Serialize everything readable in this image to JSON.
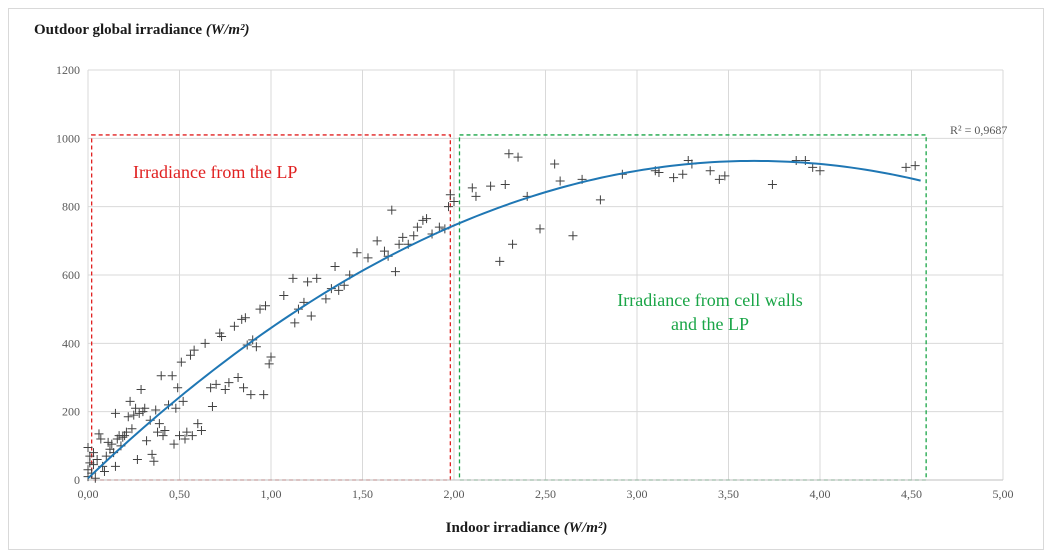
{
  "chart_data": {
    "type": "scatter",
    "title": "",
    "xlabel": "Indoor irradiance",
    "xlabel_unit": "(W/m²)",
    "ylabel": "Outdoor global irradiance",
    "ylabel_unit": "(W/m²)",
    "xlim": [
      0,
      5
    ],
    "ylim": [
      0,
      1200
    ],
    "x_ticks": [
      "0,00",
      "0,50",
      "1,00",
      "1,50",
      "2,00",
      "2,50",
      "3,00",
      "3,50",
      "4,00",
      "4,50",
      "5,00"
    ],
    "y_ticks": [
      "0",
      "200",
      "400",
      "600",
      "800",
      "1000",
      "1200"
    ],
    "grid": "major vertical and horizontal",
    "legend": "none",
    "marker": "+",
    "marker_color": "#404040",
    "trendline": {
      "type": "polynomial order 2",
      "color": "#1f77b4",
      "r2_label": "R² = 0,9687",
      "coefficients": [
        5,
        510,
        -70
      ],
      "x_range": [
        0,
        4.55
      ]
    },
    "annotations": [
      {
        "text": "Irradiance from the LP",
        "color": "#e02020",
        "box_x": [
          0.02,
          1.98
        ],
        "box_y": [
          0,
          1010
        ]
      },
      {
        "text_lines": [
          "Irradiance from cell walls",
          "and the LP"
        ],
        "color": "#1aa547",
        "box_x": [
          2.03,
          4.58
        ],
        "box_y": [
          0,
          1010
        ]
      }
    ],
    "points": [
      [
        0.0,
        10
      ],
      [
        0.0,
        30
      ],
      [
        0.01,
        50
      ],
      [
        0.01,
        70
      ],
      [
        0.0,
        95
      ],
      [
        0.02,
        20
      ],
      [
        0.03,
        45
      ],
      [
        0.03,
        80
      ],
      [
        0.04,
        5
      ],
      [
        0.05,
        60
      ],
      [
        0.06,
        135
      ],
      [
        0.07,
        120
      ],
      [
        0.08,
        40
      ],
      [
        0.09,
        25
      ],
      [
        0.1,
        70
      ],
      [
        0.11,
        110
      ],
      [
        0.12,
        90
      ],
      [
        0.13,
        105
      ],
      [
        0.14,
        80
      ],
      [
        0.15,
        195
      ],
      [
        0.15,
        40
      ],
      [
        0.16,
        120
      ],
      [
        0.17,
        130
      ],
      [
        0.18,
        100
      ],
      [
        0.19,
        125
      ],
      [
        0.2,
        130
      ],
      [
        0.21,
        140
      ],
      [
        0.22,
        185
      ],
      [
        0.23,
        230
      ],
      [
        0.24,
        150
      ],
      [
        0.25,
        190
      ],
      [
        0.26,
        210
      ],
      [
        0.27,
        60
      ],
      [
        0.28,
        195
      ],
      [
        0.29,
        265
      ],
      [
        0.3,
        200
      ],
      [
        0.31,
        210
      ],
      [
        0.32,
        115
      ],
      [
        0.34,
        175
      ],
      [
        0.35,
        75
      ],
      [
        0.36,
        55
      ],
      [
        0.37,
        205
      ],
      [
        0.38,
        140
      ],
      [
        0.39,
        165
      ],
      [
        0.4,
        305
      ],
      [
        0.41,
        130
      ],
      [
        0.42,
        145
      ],
      [
        0.44,
        220
      ],
      [
        0.46,
        305
      ],
      [
        0.47,
        105
      ],
      [
        0.48,
        210
      ],
      [
        0.49,
        270
      ],
      [
        0.5,
        130
      ],
      [
        0.51,
        345
      ],
      [
        0.52,
        230
      ],
      [
        0.53,
        120
      ],
      [
        0.54,
        140
      ],
      [
        0.56,
        365
      ],
      [
        0.57,
        130
      ],
      [
        0.58,
        380
      ],
      [
        0.6,
        165
      ],
      [
        0.62,
        145
      ],
      [
        0.64,
        400
      ],
      [
        0.67,
        270
      ],
      [
        0.68,
        215
      ],
      [
        0.7,
        280
      ],
      [
        0.72,
        430
      ],
      [
        0.73,
        420
      ],
      [
        0.75,
        265
      ],
      [
        0.77,
        285
      ],
      [
        0.8,
        450
      ],
      [
        0.82,
        300
      ],
      [
        0.84,
        470
      ],
      [
        0.85,
        270
      ],
      [
        0.86,
        475
      ],
      [
        0.87,
        395
      ],
      [
        0.89,
        250
      ],
      [
        0.9,
        410
      ],
      [
        0.92,
        390
      ],
      [
        0.94,
        500
      ],
      [
        0.96,
        250
      ],
      [
        0.97,
        510
      ],
      [
        0.99,
        340
      ],
      [
        1.0,
        360
      ],
      [
        1.07,
        540
      ],
      [
        1.12,
        590
      ],
      [
        1.13,
        460
      ],
      [
        1.15,
        500
      ],
      [
        1.18,
        520
      ],
      [
        1.2,
        580
      ],
      [
        1.22,
        480
      ],
      [
        1.25,
        590
      ],
      [
        1.3,
        530
      ],
      [
        1.33,
        560
      ],
      [
        1.35,
        625
      ],
      [
        1.37,
        555
      ],
      [
        1.4,
        570
      ],
      [
        1.43,
        600
      ],
      [
        1.47,
        665
      ],
      [
        1.53,
        650
      ],
      [
        1.58,
        700
      ],
      [
        1.62,
        670
      ],
      [
        1.64,
        655
      ],
      [
        1.66,
        790
      ],
      [
        1.68,
        610
      ],
      [
        1.7,
        690
      ],
      [
        1.72,
        710
      ],
      [
        1.75,
        690
      ],
      [
        1.78,
        715
      ],
      [
        1.8,
        740
      ],
      [
        1.83,
        760
      ],
      [
        1.85,
        765
      ],
      [
        1.88,
        720
      ],
      [
        1.92,
        740
      ],
      [
        1.95,
        735
      ],
      [
        1.97,
        800
      ],
      [
        1.98,
        835
      ],
      [
        2.0,
        815
      ],
      [
        2.1,
        855
      ],
      [
        2.12,
        830
      ],
      [
        2.2,
        860
      ],
      [
        2.25,
        640
      ],
      [
        2.28,
        865
      ],
      [
        2.3,
        955
      ],
      [
        2.32,
        690
      ],
      [
        2.35,
        945
      ],
      [
        2.4,
        830
      ],
      [
        2.47,
        735
      ],
      [
        2.55,
        925
      ],
      [
        2.58,
        875
      ],
      [
        2.65,
        715
      ],
      [
        2.7,
        880
      ],
      [
        2.8,
        820
      ],
      [
        2.92,
        895
      ],
      [
        3.1,
        905
      ],
      [
        3.12,
        900
      ],
      [
        3.2,
        885
      ],
      [
        3.25,
        895
      ],
      [
        3.28,
        935
      ],
      [
        3.3,
        925
      ],
      [
        3.4,
        905
      ],
      [
        3.45,
        880
      ],
      [
        3.48,
        890
      ],
      [
        3.74,
        865
      ],
      [
        3.87,
        935
      ],
      [
        3.92,
        935
      ],
      [
        3.96,
        915
      ],
      [
        4.0,
        905
      ],
      [
        4.47,
        915
      ],
      [
        4.52,
        920
      ]
    ]
  }
}
